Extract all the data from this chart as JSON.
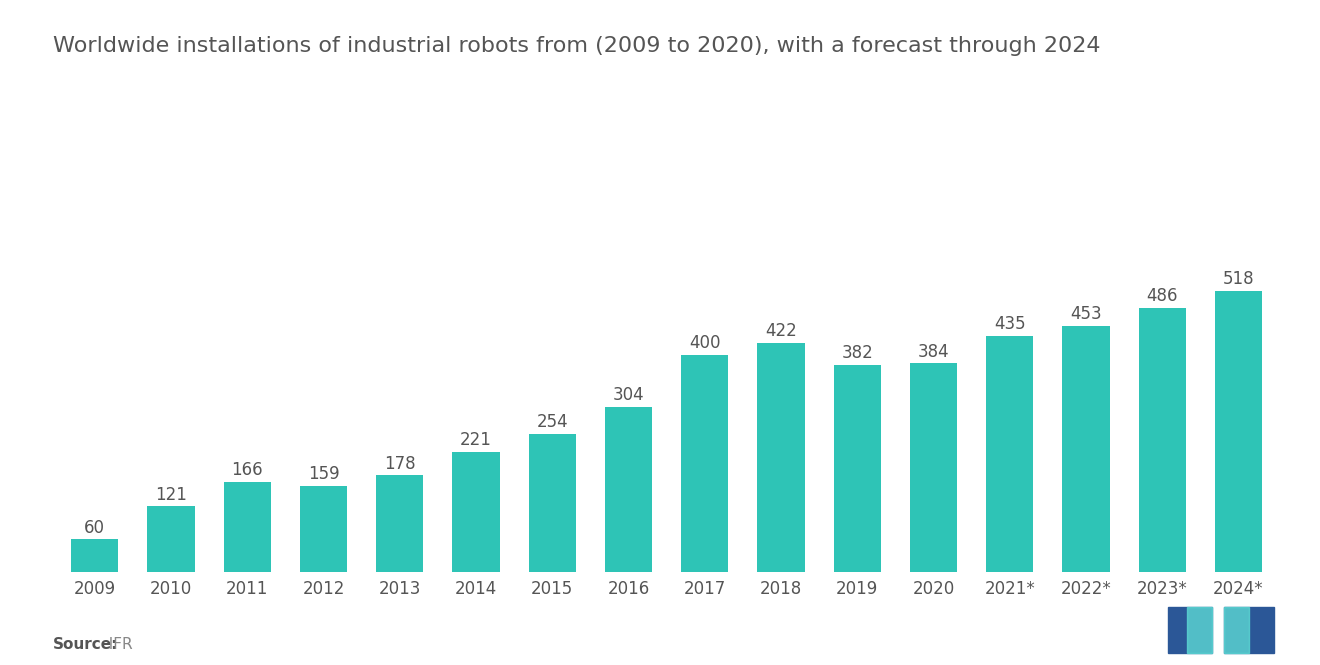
{
  "title": "Worldwide installations of industrial robots from (2009 to 2020), with a forecast through 2024",
  "categories": [
    "2009",
    "2010",
    "2011",
    "2012",
    "2013",
    "2014",
    "2015",
    "2016",
    "2017",
    "2018",
    "2019",
    "2020",
    "2021*",
    "2022*",
    "2023*",
    "2024*"
  ],
  "values": [
    60,
    121,
    166,
    159,
    178,
    221,
    254,
    304,
    400,
    422,
    382,
    384,
    435,
    453,
    486,
    518
  ],
  "bar_color": "#2EC4B6",
  "background_color": "#ffffff",
  "title_fontsize": 16,
  "label_fontsize": 12,
  "tick_fontsize": 12,
  "source_label": "Source:",
  "source_value": "  IFR",
  "bar_width": 0.62,
  "ylim_multiplier": 1.75
}
